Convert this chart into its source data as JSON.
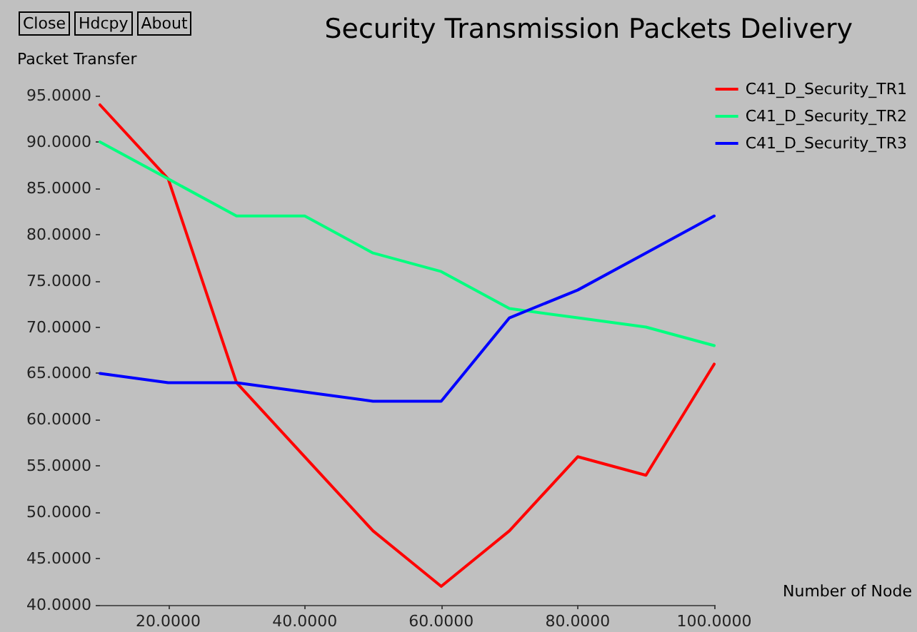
{
  "chart_data": {
    "type": "line",
    "title": "Security Transmission Packets Delivery",
    "xlabel": "Number of Node",
    "ylabel": "Packet Transfer",
    "annotations": [
      "Close",
      "Hdcpy",
      "About"
    ],
    "x": [
      10,
      20,
      30,
      40,
      50,
      60,
      70,
      80,
      90,
      100
    ],
    "series": [
      {
        "name": "C41_D_Security_TR1",
        "color": "#ff0000",
        "values": [
          94,
          86,
          64,
          56,
          48,
          42,
          48,
          56,
          54,
          66
        ]
      },
      {
        "name": "C41_D_Security_TR2",
        "color": "#00ff7f",
        "values": [
          90,
          86,
          82,
          82,
          78,
          76,
          72,
          71,
          70,
          68
        ]
      },
      {
        "name": "C41_D_Security_TR3",
        "color": "#0000ff",
        "values": [
          65,
          64,
          64,
          63,
          62,
          62,
          71,
          74,
          78,
          82
        ]
      }
    ],
    "xlim": [
      10,
      100
    ],
    "xticks": [
      {
        "value": 20,
        "label": "20.0000"
      },
      {
        "value": 40,
        "label": "40.0000"
      },
      {
        "value": 60,
        "label": "60.0000"
      },
      {
        "value": 80,
        "label": "80.0000"
      },
      {
        "value": 100,
        "label": "100.0000"
      }
    ],
    "ylim": [
      40,
      95
    ],
    "yticks": [
      {
        "value": 40,
        "label": "40.0000"
      },
      {
        "value": 45,
        "label": "45.0000"
      },
      {
        "value": 50,
        "label": "50.0000"
      },
      {
        "value": 55,
        "label": "55.0000"
      },
      {
        "value": 60,
        "label": "60.0000"
      },
      {
        "value": 65,
        "label": "65.0000"
      },
      {
        "value": 70,
        "label": "70.0000"
      },
      {
        "value": 75,
        "label": "75.0000"
      },
      {
        "value": 80,
        "label": "80.0000"
      },
      {
        "value": 85,
        "label": "85.0000"
      },
      {
        "value": 90,
        "label": "90.0000"
      },
      {
        "value": 95,
        "label": "95.0000"
      }
    ],
    "grid": false,
    "legend": "top right",
    "marker": "none",
    "line_style": "solid"
  }
}
